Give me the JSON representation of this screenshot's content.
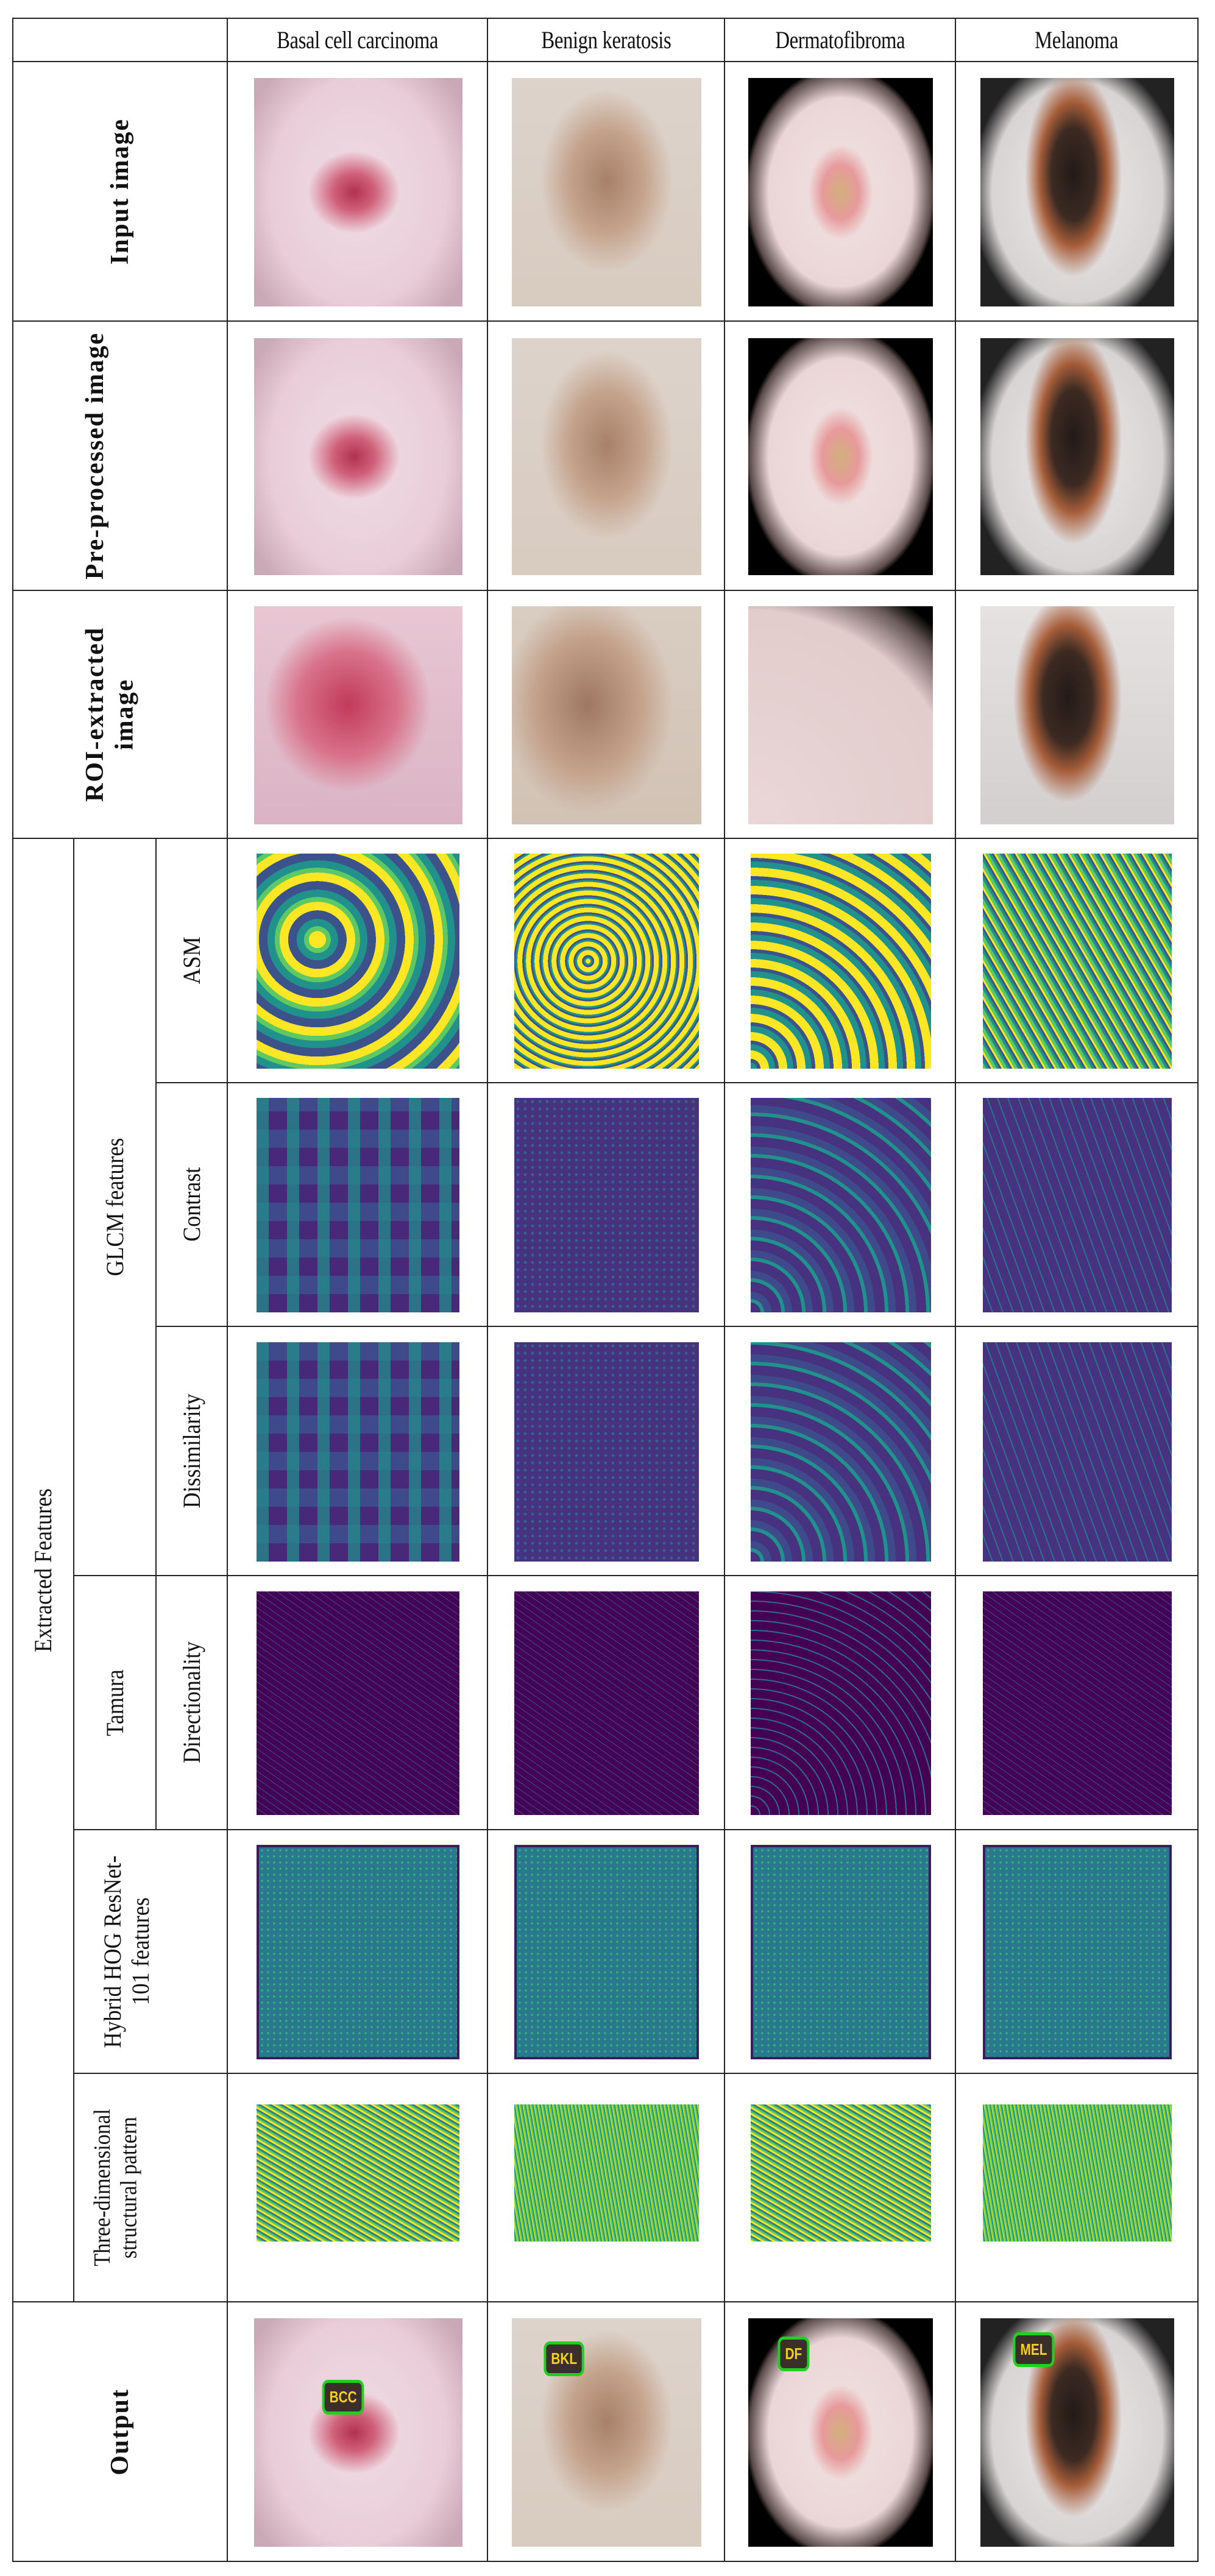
{
  "columns": [
    "Basal cell carcinoma",
    "Benign keratosis",
    "Dermatofibroma",
    "Melanoma"
  ],
  "rows": {
    "input": "Input image",
    "preprocessed": "Pre-processed image",
    "roi": "ROI-extracted image",
    "extracted": "Extracted Features",
    "glcm": "GLCM features",
    "asm": "ASM",
    "contrast": "Contrast",
    "dissimilarity": "Dissimilarity",
    "tamura": "Tamura",
    "directionality": "Directionality",
    "hog": "Hybrid HOG ResNet-101 features",
    "threed": "Three-dimensional structural pattern",
    "output": "Output"
  },
  "badges": [
    "BCC",
    "BKL",
    "DF",
    "MEL"
  ],
  "colors": {
    "badge_border": "#1fd11f",
    "badge_text": "#f5d020",
    "viridis": [
      "#440154",
      "#3b528b",
      "#21918c",
      "#5ec962",
      "#fde725"
    ]
  }
}
